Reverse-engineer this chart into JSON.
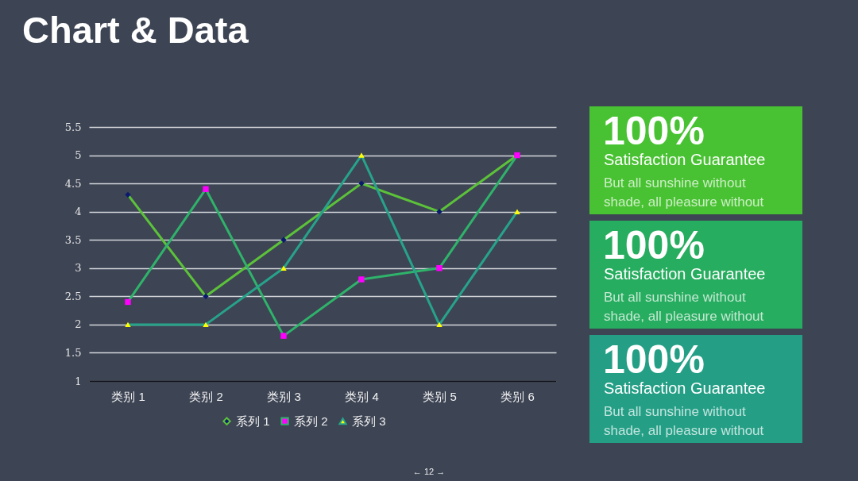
{
  "chart_data": [
    {
      "type": "line",
      "title": "Chart & Data",
      "categories": [
        "类别 1",
        "类别 2",
        "类别 3",
        "类别 4",
        "类别 5",
        "类别 6"
      ],
      "series": [
        {
          "name": "系列 1",
          "color": "#5cc23a",
          "marker": "diamond",
          "colors": [
            "#0b1a6e",
            "#0b1a6e",
            "#0b1a6e",
            "#0b1a6e",
            "#0b1a6e",
            "#0b1a6e"
          ],
          "values": [
            4.3,
            2.5,
            3.5,
            4.5,
            4,
            5
          ]
        },
        {
          "name": "系列 2",
          "color": "#2fb36a",
          "marker": "square",
          "colors": [
            "#ff00ff",
            "#ff00ff",
            "#ff00ff",
            "#ff00ff",
            "#ff00ff",
            "#ff00ff"
          ],
          "values": [
            2.4,
            4.4,
            1.8,
            2.8,
            3,
            5
          ]
        },
        {
          "name": "系列 3",
          "color": "#27a38a",
          "marker": "triangle",
          "colors": [
            "#ffff00",
            "#ffff00",
            "#ffff00",
            "#ffff00",
            "#ffff00",
            "#ffff00"
          ],
          "values": [
            2,
            2,
            3,
            5,
            2,
            4
          ]
        }
      ],
      "ylim": [
        1,
        5.5
      ],
      "yticks": [
        1,
        1.5,
        2,
        2.5,
        3,
        3.5,
        4,
        4.5,
        5,
        5.5
      ],
      "grid": "y",
      "legend": "bottom",
      "line_style": "solid",
      "annotations": [
        "← 12 →"
      ]
    },
    {
      "type": "other",
      "title": "100%",
      "subtitle": "Satisfaction Guarantee",
      "annotations": [
        "But all sunshine without shade, all pleasure without"
      ],
      "colors": [
        "#48c232"
      ]
    },
    {
      "type": "other",
      "title": "100%",
      "subtitle": "Satisfaction Guarantee",
      "annotations": [
        "But all sunshine without shade, all pleasure without"
      ],
      "colors": [
        "#27ad5f"
      ]
    },
    {
      "type": "other",
      "title": "100%",
      "subtitle": "Satisfaction Guarantee",
      "annotations": [
        "But all sunshine without shade, all pleasure without"
      ],
      "colors": [
        "#249f86"
      ]
    }
  ]
}
